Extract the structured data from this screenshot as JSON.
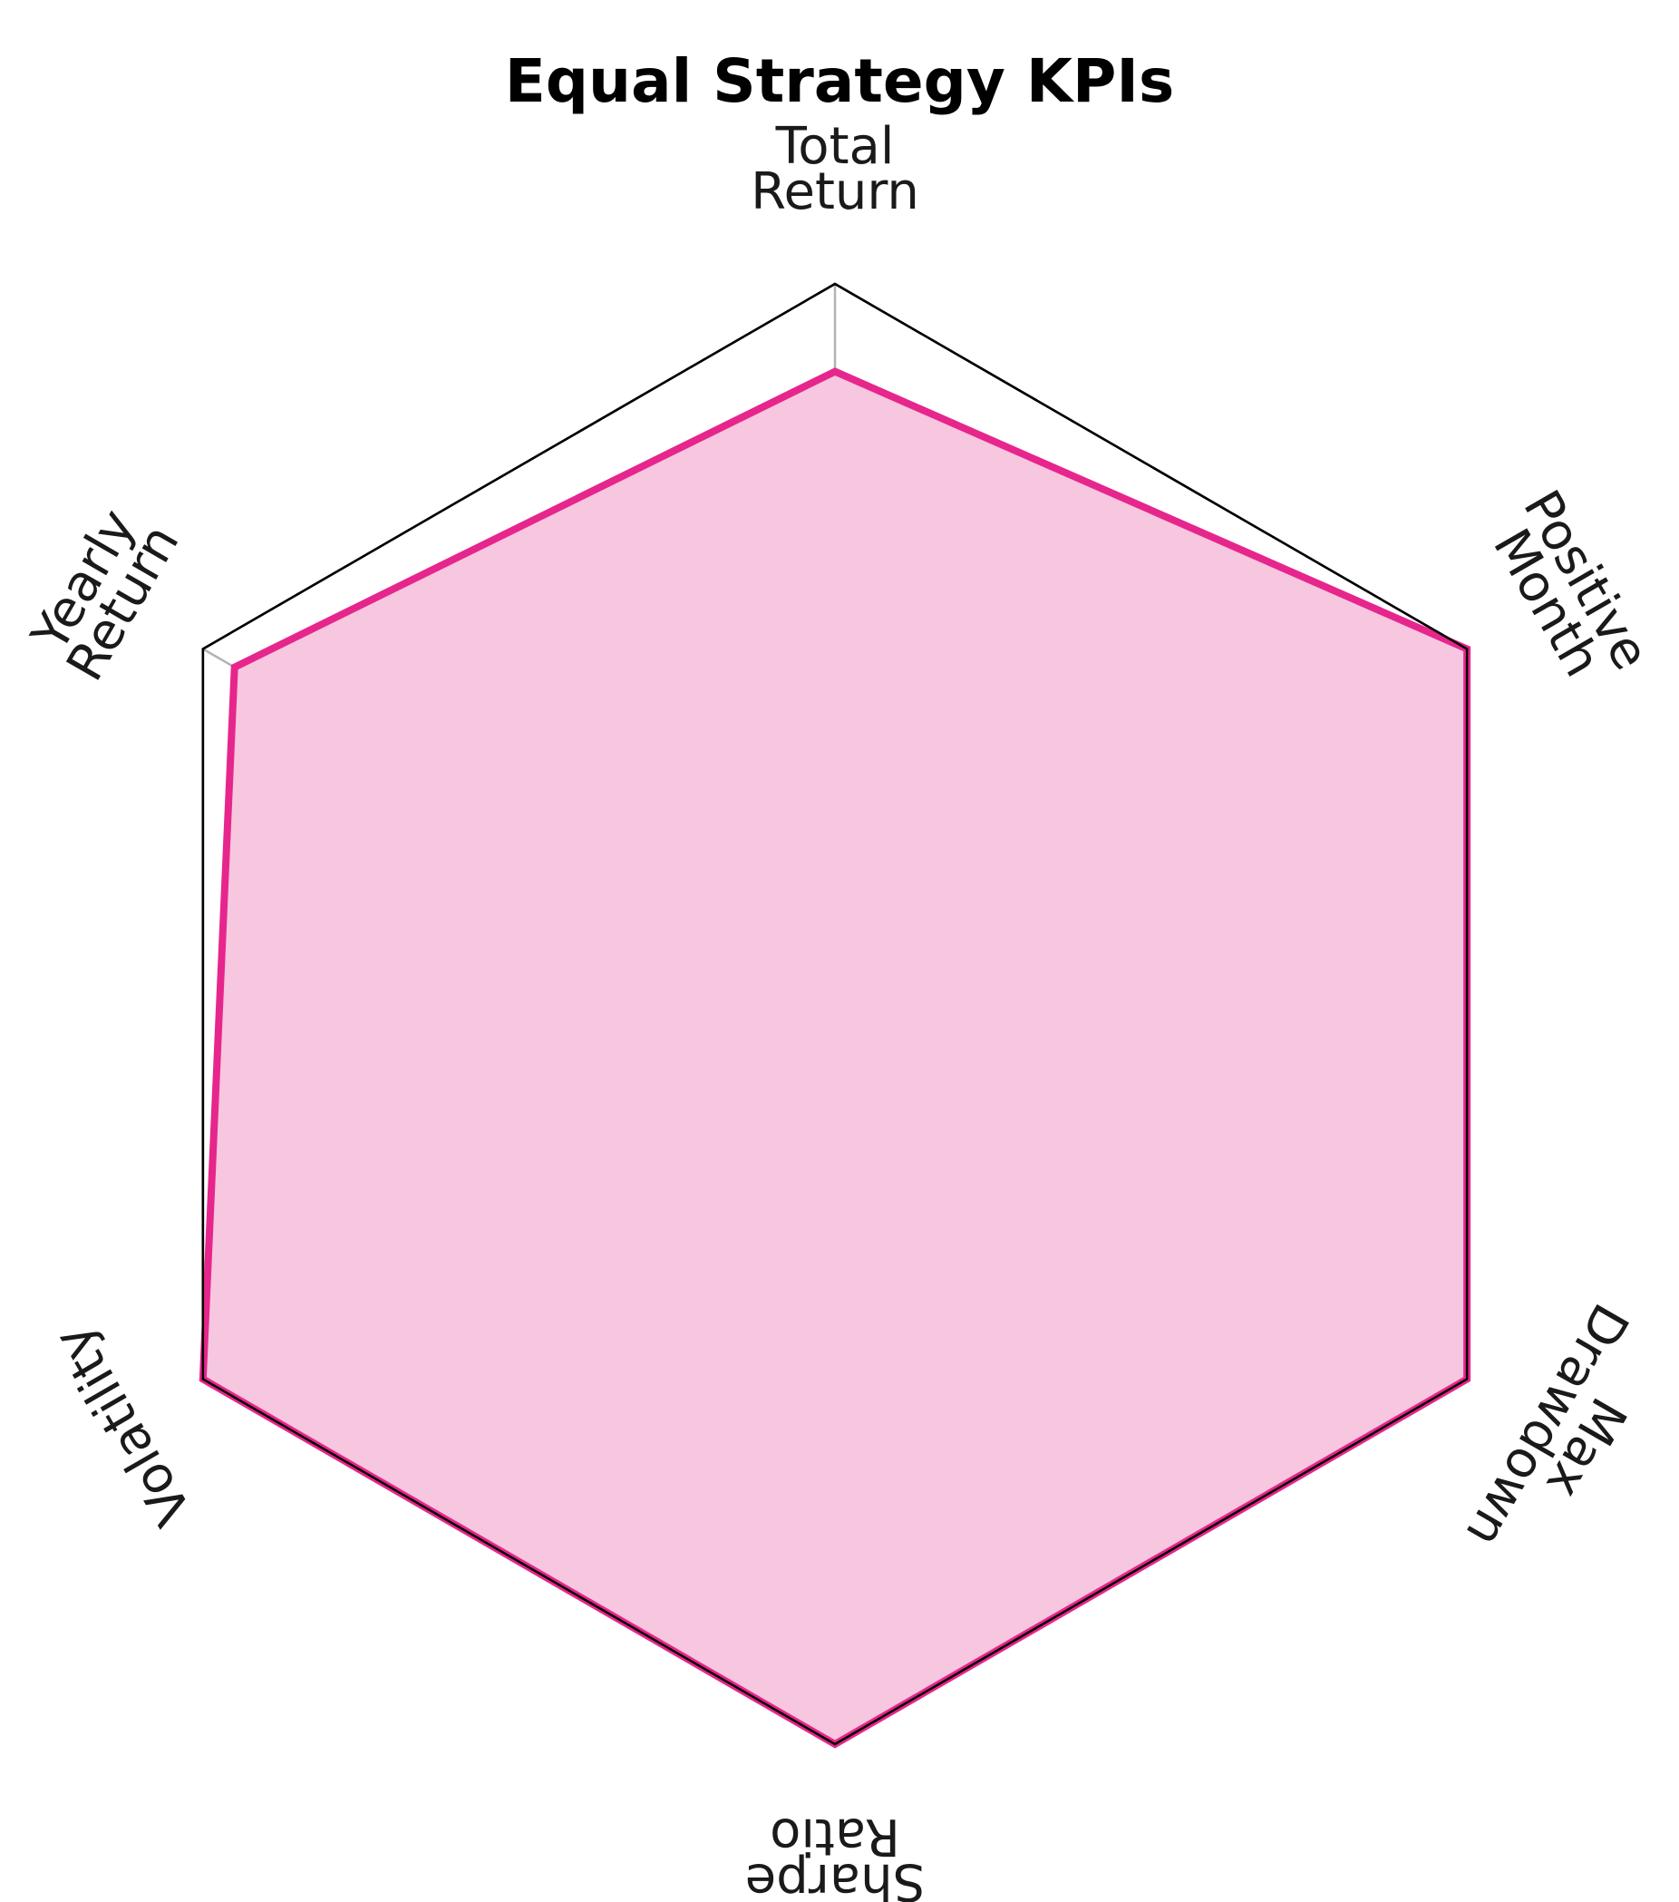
{
  "chart_data": {
    "type": "radar",
    "title": "Equal Strategy KPIs",
    "axes": [
      [
        "Total",
        "Return"
      ],
      [
        "Positive",
        "Month"
      ],
      [
        "Max",
        "Drawdown"
      ],
      [
        "Sharpe",
        "Ratio"
      ],
      [
        "Volatility"
      ],
      [
        "Yearly",
        "Return"
      ]
    ],
    "series": [
      {
        "values": [
          0.88,
          1.0,
          1.0,
          1.0,
          1.0,
          0.95
        ],
        "color": "#e6268c",
        "fill": "#f7c6df"
      }
    ],
    "range": [
      0,
      1
    ],
    "rings": [
      0.2,
      0.4,
      0.6,
      0.8,
      1.0
    ],
    "grid": true,
    "orientation": "labels rotated with their axes"
  }
}
